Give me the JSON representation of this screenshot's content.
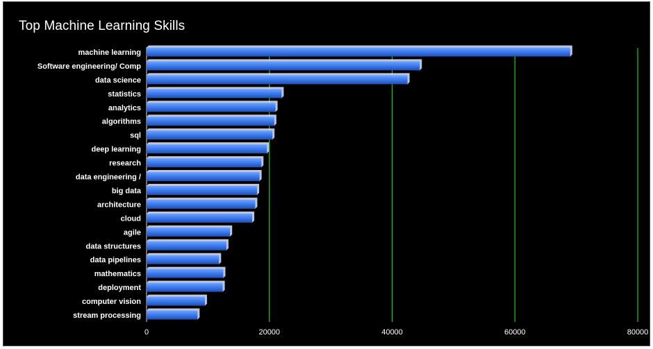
{
  "chart_data": {
    "type": "bar",
    "orientation": "horizontal",
    "title": "Top Machine Learning Skills",
    "xlabel": "",
    "ylabel": "",
    "categories": [
      "machine learning",
      "Software engineering/ Comp",
      "data science",
      "statistics",
      "analytics",
      "algorithms",
      "sql",
      "deep learning",
      "research",
      "data engineering /",
      "big data",
      "architecture",
      "cloud",
      "agile",
      "data structures",
      "data pipelines",
      "mathematics",
      "deployment",
      "computer vision",
      "stream processing"
    ],
    "values": [
      69000,
      44500,
      42500,
      22000,
      21000,
      20800,
      20500,
      19600,
      18700,
      18400,
      18000,
      17700,
      17200,
      13600,
      13000,
      11800,
      12500,
      12400,
      9500,
      8300
    ],
    "xlim": [
      0,
      80000
    ],
    "xticks": [
      "0",
      "20000",
      "40000",
      "60000",
      "80000"
    ],
    "grid": "vertical",
    "legend": "none",
    "colors": {
      "bar": "#3f7ef0",
      "bar_top": "#6fa3ff",
      "bar_shadow": "#1f4fb8",
      "grid": "#1ec81e",
      "background": "#000000",
      "text": "#ffffff"
    }
  }
}
